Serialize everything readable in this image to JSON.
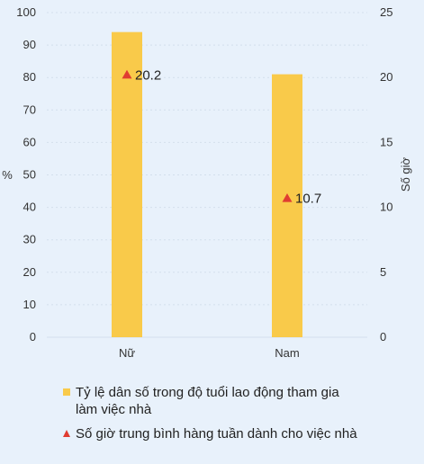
{
  "colors": {
    "bar": "#f9ca4a",
    "marker": "#e03c31",
    "grid": "#d3dfec",
    "background": "#e8f1fb"
  },
  "chart_data": {
    "type": "bar",
    "categories": [
      "Nữ",
      "Nam"
    ],
    "series": [
      {
        "name": "Tỷ lệ dân số trong độ tuổi lao động tham gia làm việc nhà",
        "type": "bar",
        "axis": "left",
        "values": [
          94,
          81
        ]
      },
      {
        "name": "Số giờ trung bình hàng tuần dành cho việc nhà",
        "type": "scatter",
        "marker": "triangle",
        "axis": "right",
        "values": [
          20.2,
          10.7
        ],
        "labels": [
          "20.2",
          "10.7"
        ]
      }
    ],
    "ylabel": "%",
    "y2label": "Số giờ",
    "ylim": [
      0,
      100
    ],
    "y2lim": [
      0,
      25
    ],
    "yticks": [
      "0",
      "10",
      "20",
      "30",
      "40",
      "50",
      "60",
      "70",
      "80",
      "90",
      "100"
    ],
    "y2ticks": [
      "0",
      "5",
      "10",
      "15",
      "20",
      "25"
    ],
    "grid": true,
    "legend": "bottom"
  }
}
